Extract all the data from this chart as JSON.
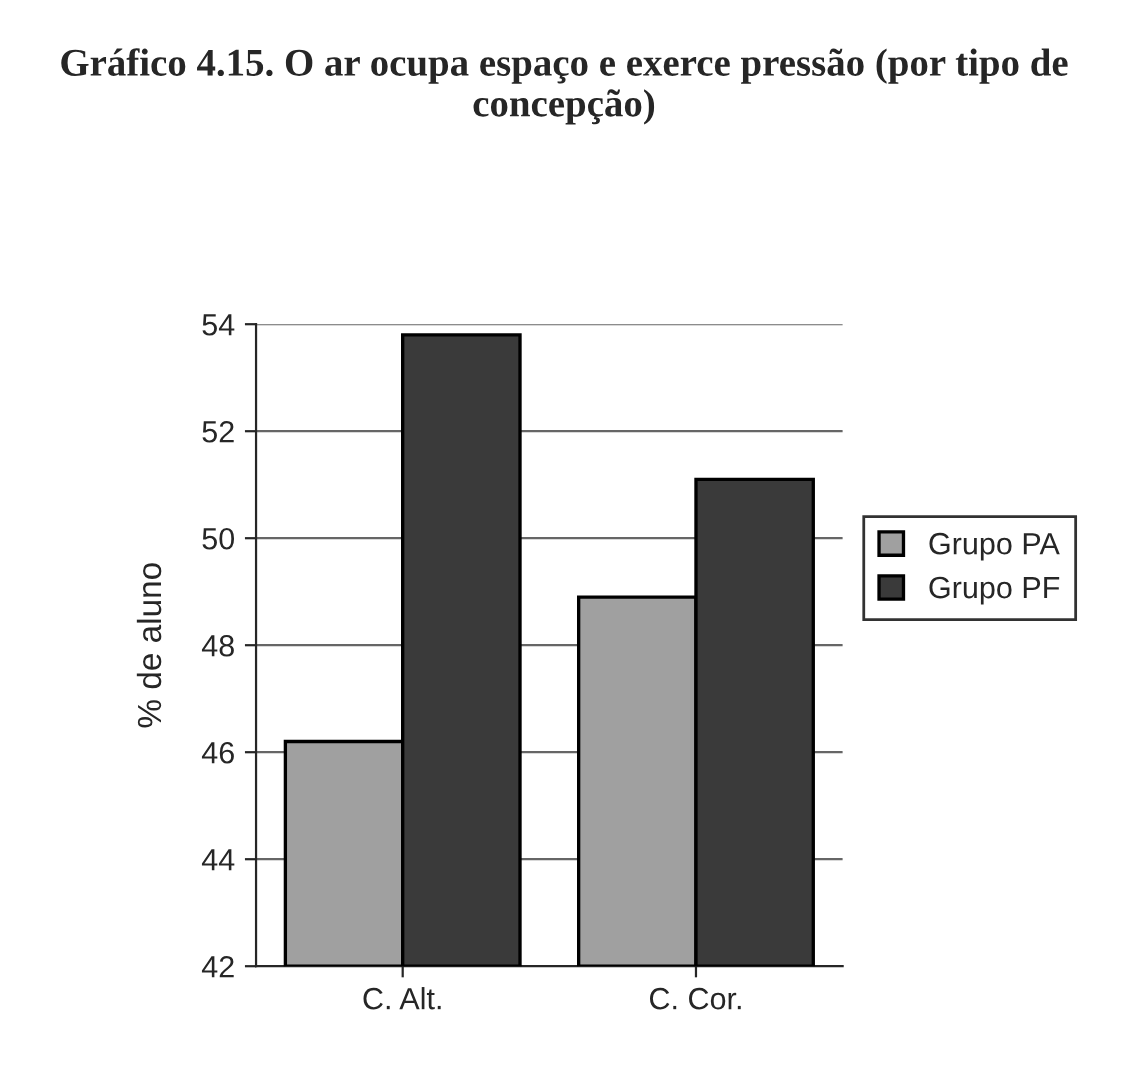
{
  "chart_data": {
    "type": "bar",
    "title": "Gráfico 4.15. O ar ocupa espaço e exerce pressão (por tipo de concepção)",
    "ylabel": "% de aluno",
    "categories": [
      "C. Alt.",
      "C. Cor."
    ],
    "series": [
      {
        "name": "Grupo PA",
        "color": "#a0a0a0",
        "values": [
          46.2,
          48.9
        ]
      },
      {
        "name": "Grupo PF",
        "color": "#3a3a3a",
        "values": [
          53.8,
          51.1
        ]
      }
    ],
    "ylim": [
      42,
      54
    ],
    "yticks": [
      42,
      44,
      46,
      48,
      50,
      52,
      54
    ],
    "grid": "y",
    "legend": "right"
  }
}
